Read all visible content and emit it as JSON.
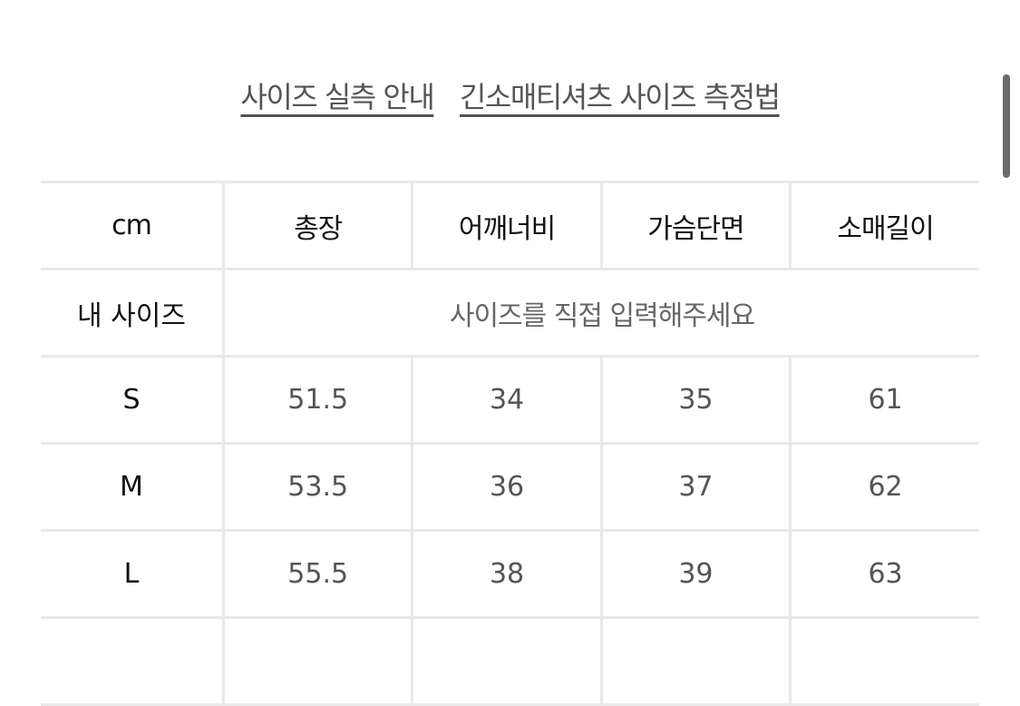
{
  "links": [
    "사이즈 실측 안내",
    "긴소매티셔츠 사이즈 측정법"
  ],
  "table": {
    "headers": [
      "cm",
      "총장",
      "어깨너비",
      "가슴단면",
      "소매길이"
    ],
    "my_size_label": "내 사이즈",
    "my_size_placeholder": "사이즈를 직접 입력해주세요",
    "rows": [
      {
        "size": "S",
        "values": [
          "51.5",
          "34",
          "35",
          "61"
        ]
      },
      {
        "size": "M",
        "values": [
          "53.5",
          "36",
          "37",
          "62"
        ]
      },
      {
        "size": "L",
        "values": [
          "55.5",
          "38",
          "39",
          "63"
        ]
      }
    ]
  }
}
